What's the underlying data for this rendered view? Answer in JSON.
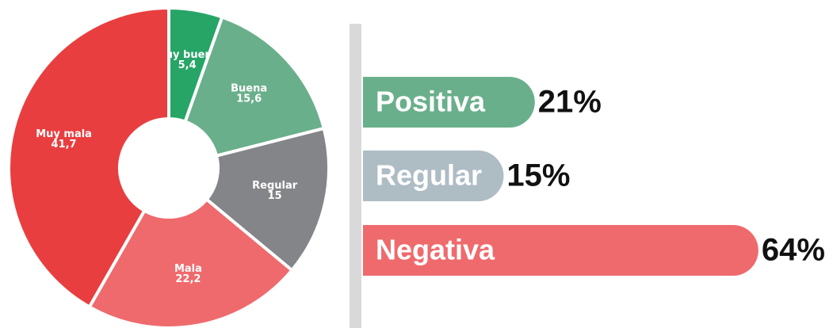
{
  "chart_data": [
    {
      "type": "pie",
      "donut": true,
      "categories": [
        "Muy buena",
        "Buena",
        "Regular",
        "Mala",
        "Muy mala"
      ],
      "values": [
        5.4,
        15.6,
        15,
        22.2,
        41.7
      ],
      "value_labels": [
        "5,4",
        "15,6",
        "15",
        "22,2",
        "41,7"
      ],
      "colors": [
        "#27a567",
        "#6aaf8b",
        "#848589",
        "#ef6a6d",
        "#e93e3f"
      ]
    },
    {
      "type": "bar",
      "orientation": "horizontal",
      "categories": [
        "Positiva",
        "Regular",
        "Negativa"
      ],
      "values": [
        21,
        15,
        64
      ],
      "value_labels": [
        "21%",
        "15%",
        "64%"
      ],
      "colors": [
        "#6aaf8b",
        "#aebcc4",
        "#ef6a6d"
      ]
    }
  ]
}
